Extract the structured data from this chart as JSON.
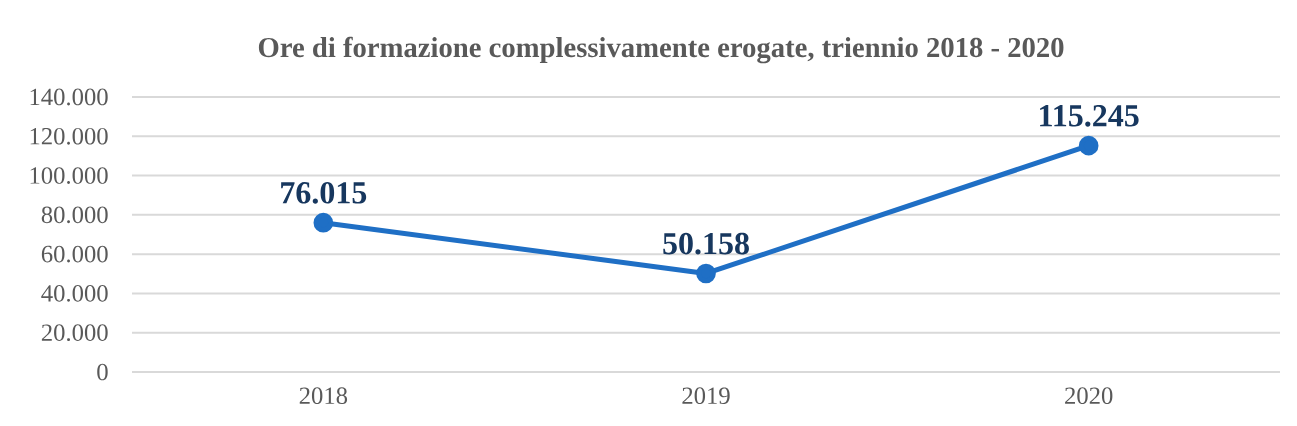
{
  "chart_data": {
    "type": "line",
    "title": "Ore di formazione complessivamente erogate, triennio 2018 - 2020",
    "categories": [
      "2018",
      "2019",
      "2020"
    ],
    "values": [
      76015,
      50158,
      115245
    ],
    "value_labels": [
      "76.015",
      "50.158",
      "115.245"
    ],
    "color": "#1f6fc5",
    "ylim": [
      0,
      140000
    ],
    "yticks": [
      0,
      {
        "value": 20000,
        "label": "20.000"
      },
      {
        "value": 40000,
        "label": "40.000"
      },
      {
        "value": 60000,
        "label": "60.000"
      },
      {
        "value": 80000,
        "label": "80.000"
      },
      {
        "value": 100000,
        "label": "100.000"
      },
      {
        "value": 120000,
        "label": "120.000"
      },
      {
        "value": 140000,
        "label": "140.000"
      }
    ],
    "grid": "y",
    "marker": "circle",
    "line_style": "solid"
  }
}
